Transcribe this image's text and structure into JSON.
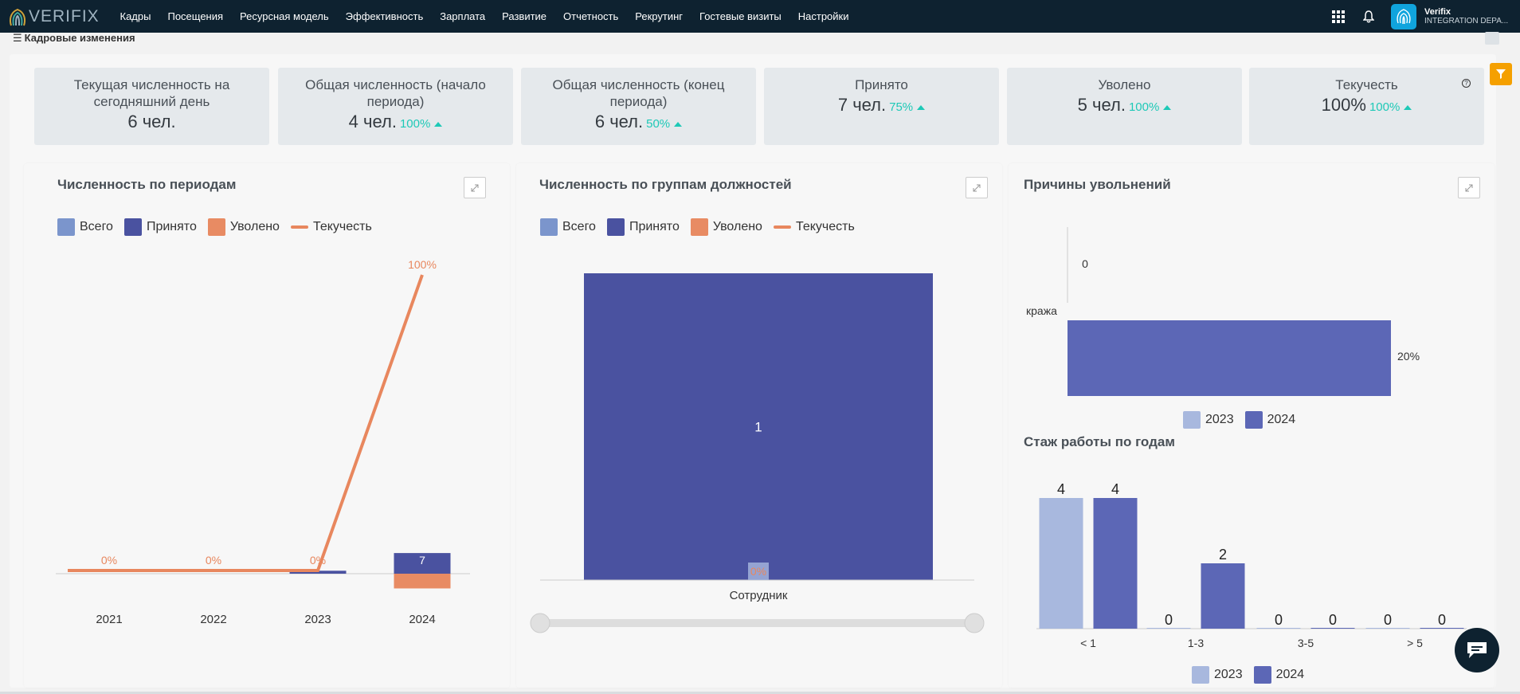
{
  "brand": {
    "logo_text": "VERIFIX"
  },
  "nav": {
    "items": [
      "Кадры",
      "Посещения",
      "Ресурсная модель",
      "Эффективность",
      "Зарплата",
      "Развитие",
      "Отчетность",
      "Рекрутинг",
      "Гостевые визиты",
      "Настройки"
    ]
  },
  "user": {
    "name": "Verifix",
    "org": "INTEGRATION DEPA..."
  },
  "icons": {
    "apps": "grid-icon",
    "notifications": "bell-icon",
    "avatar": "fingerprint-icon",
    "filter": "filter-icon",
    "help": "question-icon",
    "expand": "expand-icon",
    "chat": "chat-icon"
  },
  "page": {
    "menu_glyph": "☰",
    "title": "Кадровые изменения"
  },
  "kpis": [
    {
      "title": "Текущая численность на сегодняшний день",
      "value": "6 чел.",
      "pct": ""
    },
    {
      "title": "Общая численность (начало периода)",
      "value": "4 чел.",
      "pct": "100%"
    },
    {
      "title": "Общая численность (конец периода)",
      "value": "6 чел.",
      "pct": "50%"
    },
    {
      "title": "Принято",
      "value": "7 чел.",
      "pct": "75%"
    },
    {
      "title": "Уволено",
      "value": "5 чел.",
      "pct": "100%"
    },
    {
      "title": "Текучесть",
      "value": "100%",
      "pct": "100%"
    }
  ],
  "colors": {
    "total": "#7b95cc",
    "hired": "#4a52a0",
    "fired": "#e88b63",
    "turnover": "#e8875e",
    "y2023": "#a8b8de",
    "y2024": "#5c67b6",
    "kpi_pct": "#1ec9b7",
    "topbar": "#0e2230",
    "filter": "#f5a000"
  },
  "panels": {
    "periods": {
      "title": "Численность по периодам",
      "legend": [
        "Всего",
        "Принято",
        "Уволено",
        "Текучесть"
      ]
    },
    "groups": {
      "title": "Численность по группам должностей",
      "legend": [
        "Всего",
        "Принято",
        "Уволено",
        "Текучесть"
      ]
    },
    "reasons": {
      "title": "Причины увольнений",
      "legend": [
        "2023",
        "2024"
      ]
    },
    "tenure": {
      "title": "Стаж работы по годам",
      "legend": [
        "2023",
        "2024"
      ]
    }
  },
  "chart_data": [
    {
      "type": "bar",
      "title": "Численность по периодам",
      "categories": [
        "2021",
        "2022",
        "2023",
        "2024"
      ],
      "series": [
        {
          "name": "Всего",
          "values": [
            0,
            0,
            0,
            0
          ]
        },
        {
          "name": "Принято",
          "values": [
            0,
            0,
            1,
            7
          ]
        },
        {
          "name": "Уволено",
          "values": [
            0,
            0,
            0,
            -5
          ]
        },
        {
          "name": "Текучесть",
          "type": "line",
          "values": [
            0,
            0,
            0,
            100
          ],
          "labels": [
            "0%",
            "0%",
            "0%",
            "100%"
          ]
        }
      ],
      "data_labels": {
        "hired_2024": "7"
      }
    },
    {
      "type": "bar",
      "title": "Численность по группам должностей",
      "categories": [
        "Сотрудник"
      ],
      "series": [
        {
          "name": "Принято",
          "values": [
            1
          ]
        },
        {
          "name": "Текучесть",
          "type": "line",
          "values": [
            0
          ],
          "labels": [
            "0%"
          ]
        }
      ]
    },
    {
      "type": "bar",
      "title": "Причины увольнений",
      "orientation": "horizontal",
      "categories": [
        "кража"
      ],
      "series": [
        {
          "name": "2023",
          "values": [
            0
          ],
          "labels": [
            "0"
          ]
        },
        {
          "name": "2024",
          "values": [
            20
          ],
          "labels": [
            "20%"
          ]
        }
      ]
    },
    {
      "type": "bar",
      "title": "Стаж работы по годам",
      "categories": [
        "< 1",
        "1-3",
        "3-5",
        "> 5"
      ],
      "series": [
        {
          "name": "2023",
          "values": [
            4,
            0,
            0,
            0
          ]
        },
        {
          "name": "2024",
          "values": [
            4,
            2,
            0,
            0
          ]
        }
      ]
    }
  ]
}
